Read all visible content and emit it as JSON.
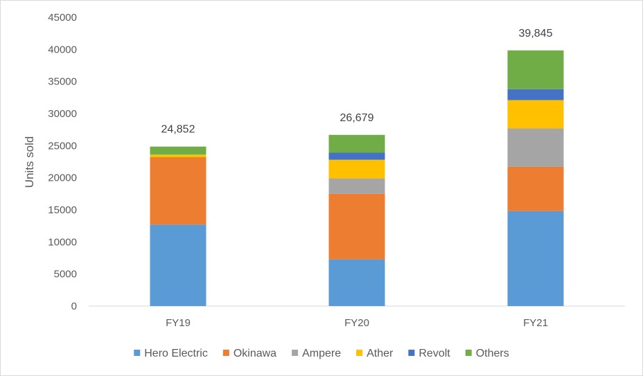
{
  "chart_data": {
    "type": "bar",
    "stacked": true,
    "title": "",
    "xlabel": "",
    "ylabel": "Units sold",
    "ylim": [
      0,
      45000
    ],
    "yticks": [
      "0",
      "5000",
      "10000",
      "15000",
      "20000",
      "25000",
      "30000",
      "35000",
      "40000",
      "45000"
    ],
    "grid": false,
    "legend_position": "bottom",
    "categories": [
      "FY19",
      "FY20",
      "FY21"
    ],
    "totals": [
      "24,852",
      "26,679",
      "39,845"
    ],
    "series": [
      {
        "name": "Hero Electric",
        "color": "#5b9bd5",
        "values": [
          12700,
          7300,
          14800
        ]
      },
      {
        "name": "Okinawa",
        "color": "#ed7d31",
        "values": [
          10500,
          10200,
          6900
        ]
      },
      {
        "name": "Ampere",
        "color": "#a5a5a5",
        "values": [
          0,
          2400,
          6000
        ]
      },
      {
        "name": "Ather",
        "color": "#ffc000",
        "values": [
          400,
          2900,
          4400
        ]
      },
      {
        "name": "Revolt",
        "color": "#4472c4",
        "values": [
          0,
          1100,
          1700
        ]
      },
      {
        "name": "Others",
        "color": "#70ad47",
        "values": [
          1252,
          2779,
          6045
        ]
      }
    ]
  }
}
